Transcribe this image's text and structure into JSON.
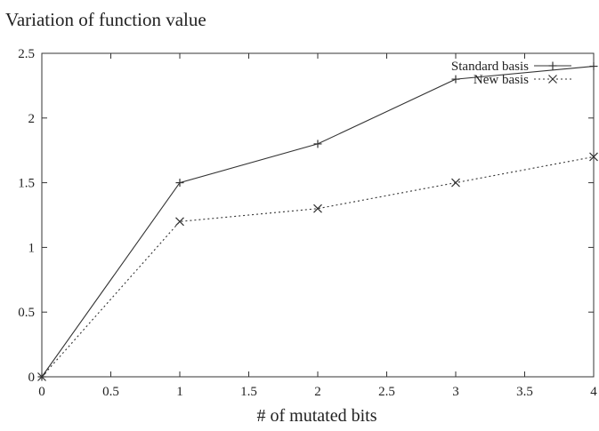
{
  "chart_data": {
    "type": "line",
    "title": "Variation of function value",
    "xlabel": "# of mutated bits",
    "ylabel": "",
    "xlim": [
      0,
      4
    ],
    "ylim": [
      0,
      2.5
    ],
    "xticks": [
      0,
      0.5,
      1,
      1.5,
      2,
      2.5,
      3,
      3.5,
      4
    ],
    "xtick_labels": [
      "0",
      "0.5",
      "1",
      "1.5",
      "2",
      "2.5",
      "3",
      "3.5",
      "4"
    ],
    "yticks": [
      0,
      0.5,
      1,
      1.5,
      2,
      2.5
    ],
    "ytick_labels": [
      "0",
      "0.5",
      "1",
      "1.5",
      "2",
      "2.5"
    ],
    "grid": false,
    "legend_position": "top-right",
    "series": [
      {
        "name": "Standard basis",
        "x": [
          0,
          1,
          2,
          3,
          4
        ],
        "y": [
          0,
          1.5,
          1.8,
          2.3,
          2.4
        ],
        "line_style": "solid",
        "marker": "plus",
        "color": "#333333"
      },
      {
        "name": "New basis",
        "x": [
          0,
          1,
          2,
          3,
          4
        ],
        "y": [
          0,
          1.2,
          1.3,
          1.5,
          1.7
        ],
        "line_style": "dotted",
        "marker": "cross",
        "color": "#333333"
      }
    ]
  }
}
